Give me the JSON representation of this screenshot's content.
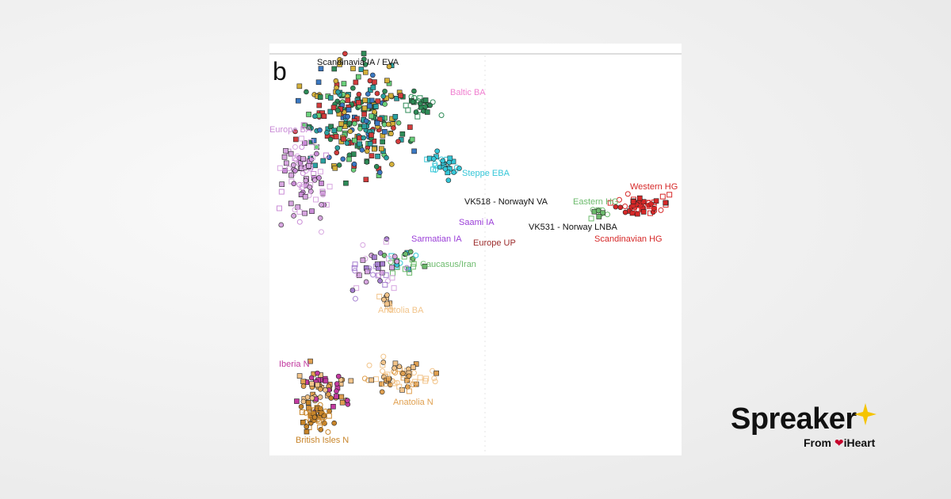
{
  "figure": {
    "panel": "b",
    "labels": [
      {
        "text": "Scandinavia IA / EVA"
      },
      {
        "text": "Baltic BA"
      },
      {
        "text": "Europe BA"
      },
      {
        "text": "Steppe EBA"
      },
      {
        "text": "Western HG"
      },
      {
        "text": "VK518 - NorwayN VA"
      },
      {
        "text": "Eastern HG"
      },
      {
        "text": "Saami IA"
      },
      {
        "text": "VK531 - Norway LNBA"
      },
      {
        "text": "Sarmatian IA"
      },
      {
        "text": "Scandinavian HG"
      },
      {
        "text": "Europe UP"
      },
      {
        "text": "Caucasus/Iran"
      },
      {
        "text": "Anatolia BA"
      },
      {
        "text": "Iberia N"
      },
      {
        "text": "Anatolia N"
      },
      {
        "text": "British Isles N"
      }
    ]
  },
  "logo": {
    "brand": "Spreaker",
    "from": "From",
    "partner": "iHeart"
  }
}
